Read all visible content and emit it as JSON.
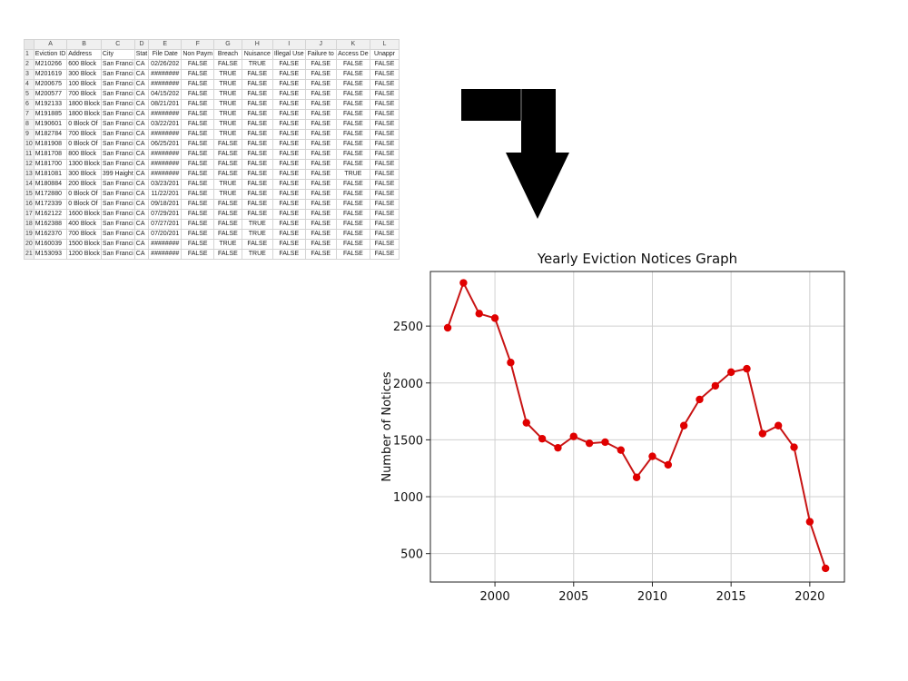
{
  "spreadsheet": {
    "columns": [
      "A",
      "B",
      "C",
      "D",
      "E",
      "F",
      "G",
      "H",
      "I",
      "J",
      "K",
      "L"
    ],
    "rows": [
      {
        "n": "1",
        "cells": [
          "Eviction ID",
          "Address",
          "City",
          "Stat",
          "File Date",
          "Non Paym",
          "Breach",
          "Nuisance",
          "Illegal Use",
          "Failure to",
          "Access De",
          "Unappr"
        ]
      },
      {
        "n": "2",
        "cells": [
          "M210266",
          "600 Block",
          "San Franci",
          "CA",
          "02/26/202",
          "FALSE",
          "FALSE",
          "TRUE",
          "FALSE",
          "FALSE",
          "FALSE",
          "FALSE"
        ]
      },
      {
        "n": "3",
        "cells": [
          "M201619",
          "300 Block",
          "San Franci",
          "CA",
          "########",
          "FALSE",
          "TRUE",
          "FALSE",
          "FALSE",
          "FALSE",
          "FALSE",
          "FALSE"
        ]
      },
      {
        "n": "4",
        "cells": [
          "M200675",
          "100 Block",
          "San Franci",
          "CA",
          "########",
          "FALSE",
          "TRUE",
          "FALSE",
          "FALSE",
          "FALSE",
          "FALSE",
          "FALSE"
        ]
      },
      {
        "n": "5",
        "cells": [
          "M200577",
          "700 Block",
          "San Franci",
          "CA",
          "04/15/202",
          "FALSE",
          "TRUE",
          "FALSE",
          "FALSE",
          "FALSE",
          "FALSE",
          "FALSE"
        ]
      },
      {
        "n": "6",
        "cells": [
          "M192133",
          "1800 Block",
          "San Franci",
          "CA",
          "08/21/201",
          "FALSE",
          "TRUE",
          "FALSE",
          "FALSE",
          "FALSE",
          "FALSE",
          "FALSE"
        ]
      },
      {
        "n": "7",
        "cells": [
          "M191885",
          "1800 Block",
          "San Franci",
          "CA",
          "########",
          "FALSE",
          "TRUE",
          "FALSE",
          "FALSE",
          "FALSE",
          "FALSE",
          "FALSE"
        ]
      },
      {
        "n": "8",
        "cells": [
          "M190601",
          "0 Block Of",
          "San Franci",
          "CA",
          "03/22/201",
          "FALSE",
          "TRUE",
          "FALSE",
          "FALSE",
          "FALSE",
          "FALSE",
          "FALSE"
        ]
      },
      {
        "n": "9",
        "cells": [
          "M182784",
          "700 Block",
          "San Franci",
          "CA",
          "########",
          "FALSE",
          "TRUE",
          "FALSE",
          "FALSE",
          "FALSE",
          "FALSE",
          "FALSE"
        ]
      },
      {
        "n": "10",
        "cells": [
          "M181908",
          "0 Block Of",
          "San Franci",
          "CA",
          "06/25/201",
          "FALSE",
          "FALSE",
          "FALSE",
          "FALSE",
          "FALSE",
          "FALSE",
          "FALSE"
        ]
      },
      {
        "n": "11",
        "cells": [
          "M181708",
          "800 Block",
          "San Franci",
          "CA",
          "########",
          "FALSE",
          "FALSE",
          "FALSE",
          "FALSE",
          "FALSE",
          "FALSE",
          "FALSE"
        ]
      },
      {
        "n": "12",
        "cells": [
          "M181700",
          "1300 Block",
          "San Franci",
          "CA",
          "########",
          "FALSE",
          "FALSE",
          "FALSE",
          "FALSE",
          "FALSE",
          "FALSE",
          "FALSE"
        ]
      },
      {
        "n": "13",
        "cells": [
          "M181081",
          "300 Block",
          "399 Haight",
          "CA",
          "########",
          "FALSE",
          "FALSE",
          "FALSE",
          "FALSE",
          "FALSE",
          "TRUE",
          "FALSE"
        ]
      },
      {
        "n": "14",
        "cells": [
          "M180884",
          "200 Block",
          "San Franci",
          "CA",
          "03/23/201",
          "FALSE",
          "TRUE",
          "FALSE",
          "FALSE",
          "FALSE",
          "FALSE",
          "FALSE"
        ]
      },
      {
        "n": "15",
        "cells": [
          "M172880",
          "0 Block Of",
          "San Franci",
          "CA",
          "11/22/201",
          "FALSE",
          "TRUE",
          "FALSE",
          "FALSE",
          "FALSE",
          "FALSE",
          "FALSE"
        ]
      },
      {
        "n": "16",
        "cells": [
          "M172339",
          "0 Block Of",
          "San Franci",
          "CA",
          "09/18/201",
          "FALSE",
          "FALSE",
          "FALSE",
          "FALSE",
          "FALSE",
          "FALSE",
          "FALSE"
        ]
      },
      {
        "n": "17",
        "cells": [
          "M162122",
          "1600 Block",
          "San Franci",
          "CA",
          "07/29/201",
          "FALSE",
          "FALSE",
          "FALSE",
          "FALSE",
          "FALSE",
          "FALSE",
          "FALSE"
        ]
      },
      {
        "n": "18",
        "cells": [
          "M162388",
          "400 Block",
          "San Franci",
          "CA",
          "07/27/201",
          "FALSE",
          "FALSE",
          "TRUE",
          "FALSE",
          "FALSE",
          "FALSE",
          "FALSE"
        ]
      },
      {
        "n": "19",
        "cells": [
          "M162370",
          "700 Block",
          "San Franci",
          "CA",
          "07/20/201",
          "FALSE",
          "FALSE",
          "TRUE",
          "FALSE",
          "FALSE",
          "FALSE",
          "FALSE"
        ]
      },
      {
        "n": "20",
        "cells": [
          "M160039",
          "1500 Block",
          "San Franci",
          "CA",
          "########",
          "FALSE",
          "TRUE",
          "FALSE",
          "FALSE",
          "FALSE",
          "FALSE",
          "FALSE"
        ]
      },
      {
        "n": "21",
        "cells": [
          "M153093",
          "1200 Block",
          "San Franci",
          "CA",
          "########",
          "FALSE",
          "FALSE",
          "TRUE",
          "FALSE",
          "FALSE",
          "FALSE",
          "FALSE"
        ]
      }
    ]
  },
  "arrow": {
    "icon": "arrow-down-right-turn-icon",
    "color": "#000000"
  },
  "chart_data": {
    "type": "line",
    "title": "Yearly Eviction Notices Graph",
    "xlabel": "",
    "ylabel": "Number of Notices",
    "x": [
      1997,
      1998,
      1999,
      2000,
      2001,
      2002,
      2003,
      2004,
      2005,
      2006,
      2007,
      2008,
      2009,
      2010,
      2011,
      2012,
      2013,
      2014,
      2015,
      2016,
      2017,
      2018,
      2019,
      2020,
      2021
    ],
    "series": [
      {
        "values": [
          2485,
          2880,
          2610,
          2570,
          2180,
          1650,
          1510,
          1430,
          1530,
          1470,
          1480,
          1410,
          1170,
          1355,
          1280,
          1625,
          1855,
          1975,
          2095,
          2125,
          1555,
          1625,
          1435,
          780,
          370
        ],
        "color": "#e00000",
        "line_color": "#c81414"
      }
    ],
    "xlim": [
      1995.9,
      2022.2
    ],
    "ylim": [
      250,
      2980
    ],
    "xticks": [
      2000,
      2005,
      2010,
      2015,
      2020
    ],
    "yticks": [
      500,
      1000,
      1500,
      2000,
      2500
    ],
    "grid": true,
    "legend": "none"
  }
}
